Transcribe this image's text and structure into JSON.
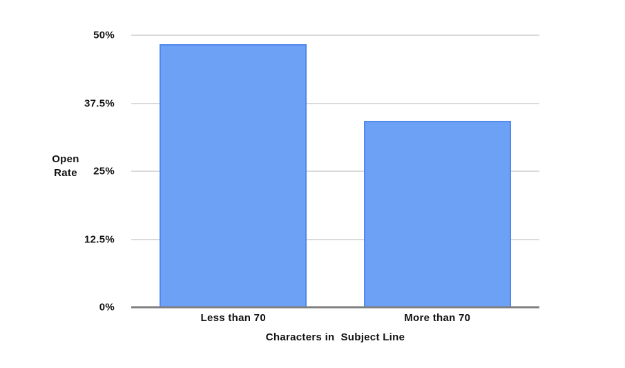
{
  "chart_data": {
    "type": "bar",
    "title": "",
    "categories": [
      "Less than 70",
      "More than 70"
    ],
    "values": [
      48.4,
      34.3
    ],
    "xlabel": "Characters in  Subject Line",
    "ylabel": "Open Rate",
    "ylim": [
      0,
      50
    ],
    "yticks": [
      {
        "value": 0,
        "label": "0%"
      },
      {
        "value": 12.5,
        "label": "12.5%"
      },
      {
        "value": 25,
        "label": "25%"
      },
      {
        "value": 37.5,
        "label": "37.5%"
      },
      {
        "value": 50,
        "label": "50%"
      }
    ],
    "grid": true,
    "legend": "none",
    "bar_width_ratio": 0.72,
    "colors": {
      "bar_fill": "#6da1f5",
      "bar_border": "#5189ee",
      "gridline": "#dadada",
      "axis_line": "#7f7f7f",
      "text": "#111111",
      "background": "#ffffff"
    }
  }
}
